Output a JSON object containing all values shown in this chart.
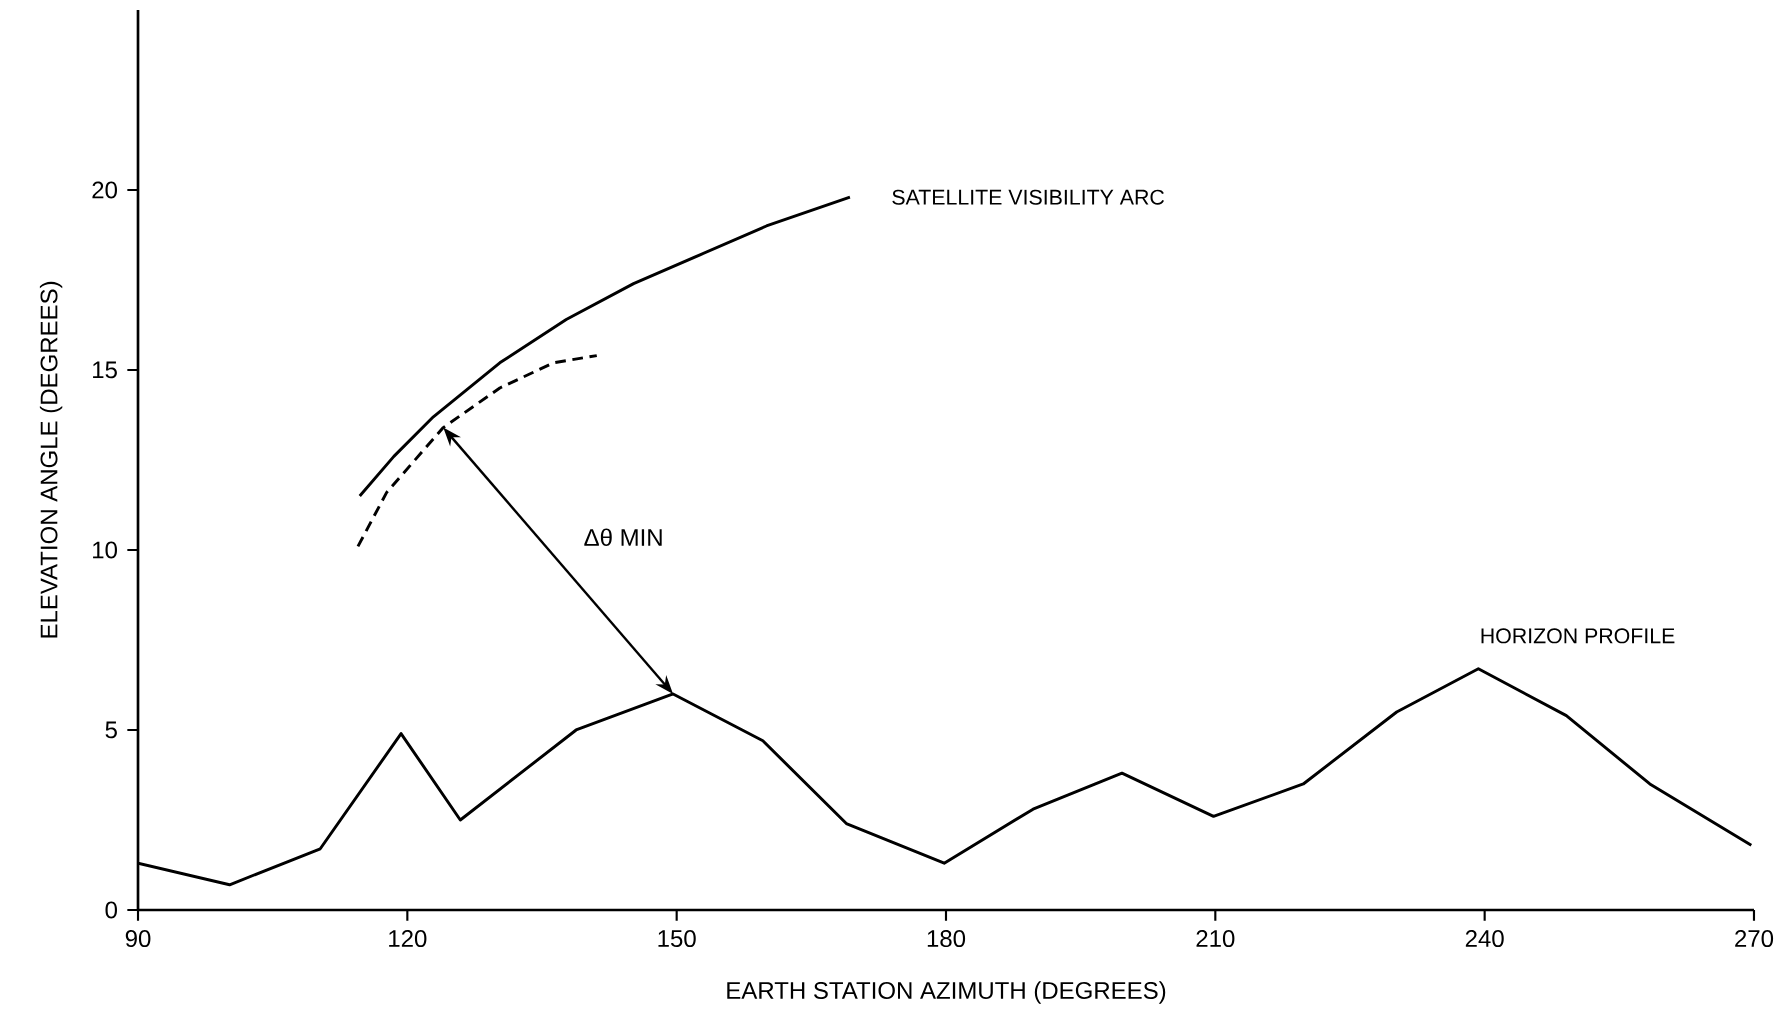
{
  "chart_data": {
    "type": "line",
    "xlabel": "EARTH STATION AZIMUTH (DEGREES)",
    "ylabel": "ELEVATION ANGLE (DEGREES)",
    "xlim": [
      90,
      270
    ],
    "xticks": [
      90,
      120,
      150,
      180,
      210,
      240,
      270
    ],
    "ylim": [
      0,
      25
    ],
    "yticks": [
      0,
      5,
      10,
      15,
      20
    ],
    "grid": false,
    "legend": false,
    "marker": "none",
    "series": [
      {
        "name": "SATELLITE VISIBILITY ARC",
        "color": "#000000",
        "line_style": "solid",
        "x": [
          114.7,
          118.5,
          122.9,
          130.3,
          137.7,
          145.2,
          152.6,
          160.0,
          169.3
        ],
        "values": [
          11.5,
          12.6,
          13.7,
          15.2,
          16.4,
          17.4,
          18.2,
          19.0,
          19.8
        ]
      },
      {
        "color": "#000000",
        "line_style": "dashed",
        "x": [
          114.5,
          117.7,
          124.0,
          130.3,
          136.3,
          141.1
        ],
        "values": [
          10.1,
          11.6,
          13.4,
          14.5,
          15.2,
          15.4
        ]
      },
      {
        "name": "HORIZON PROFILE",
        "color": "#000000",
        "line_style": "solid",
        "x": [
          90,
          100.2,
          110.3,
          119.3,
          125.9,
          138.8,
          149.6,
          159.6,
          168.9,
          179.8,
          189.7,
          199.6,
          209.8,
          219.8,
          230.2,
          239.3,
          249.1,
          258.4,
          269.7
        ],
        "values": [
          1.3,
          0.7,
          1.7,
          4.9,
          2.5,
          5.0,
          6.0,
          4.7,
          2.4,
          1.3,
          2.8,
          3.8,
          2.6,
          3.5,
          5.5,
          6.7,
          5.4,
          3.5,
          1.8
        ]
      }
    ],
    "annotations": [
      "Δθ MIN"
    ]
  }
}
